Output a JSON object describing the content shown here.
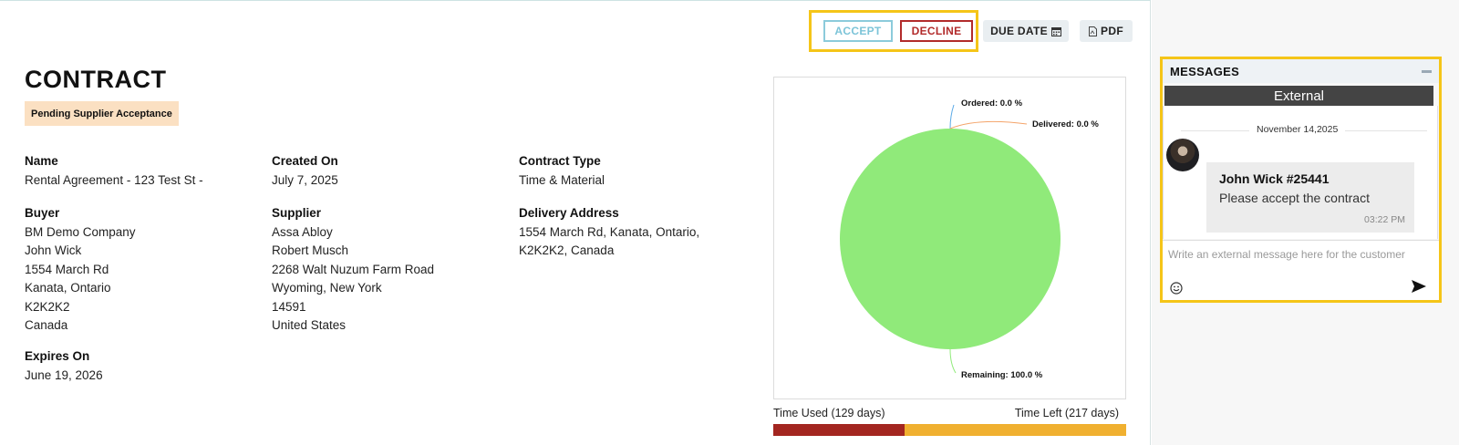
{
  "toolbar": {
    "accept_label": "ACCEPT",
    "decline_label": "DECLINE",
    "due_date_label": "DUE DATE",
    "pdf_label": "PDF"
  },
  "contract": {
    "title": "CONTRACT",
    "status": "Pending Supplier Acceptance",
    "name_label": "Name",
    "name_value": "Rental Agreement - 123 Test St -",
    "created_label": "Created On",
    "created_value": "July 7, 2025",
    "type_label": "Contract Type",
    "type_value": "Time & Material",
    "buyer_label": "Buyer",
    "buyer_lines": [
      "BM Demo Company",
      "John Wick",
      "1554 March Rd",
      "Kanata, Ontario",
      "K2K2K2",
      "Canada"
    ],
    "supplier_label": "Supplier",
    "supplier_lines": [
      "Assa Abloy",
      "Robert Musch",
      "2268 Walt Nuzum Farm Road",
      "Wyoming, New York",
      "14591",
      "United States"
    ],
    "delivery_label": "Delivery Address",
    "delivery_lines": [
      "1554 March Rd, Kanata, Ontario,",
      "K2K2K2, Canada"
    ],
    "expires_label": "Expires On",
    "expires_value": "June 19, 2026"
  },
  "chart_data": {
    "type": "pie",
    "slices": [
      {
        "label": "Ordered",
        "value": 0.0,
        "display": "Ordered: 0.0 %",
        "color": "#5aa9e6"
      },
      {
        "label": "Delivered",
        "value": 0.0,
        "display": "Delivered: 0.0 %",
        "color": "#f4a46a"
      },
      {
        "label": "Remaining",
        "value": 100.0,
        "display": "Remaining: 100.0 %",
        "color": "#90ea7a"
      }
    ]
  },
  "timeline": {
    "used_label": "Time Used (129 days)",
    "left_label": "Time Left (217 days)",
    "used_days": 129,
    "left_days": 217,
    "used_color": "#a32620",
    "left_color": "#f0b030"
  },
  "messages": {
    "header": "MESSAGES",
    "tab": "External",
    "date": "November 14,2025",
    "sender": "John Wick #25441",
    "text": "Please accept the contract",
    "time": "03:22 PM",
    "placeholder": "Write an external message here for the customer"
  },
  "icons": {
    "calendar": "calendar-icon",
    "pdf": "pdf-file-icon",
    "minimize": "minimize-icon",
    "emoji": "smiley-icon",
    "send": "send-icon"
  }
}
